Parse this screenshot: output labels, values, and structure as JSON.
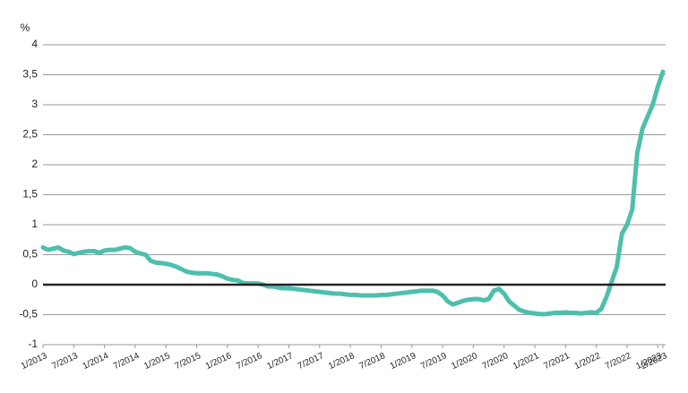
{
  "chart_data": {
    "type": "line",
    "y_label": "%",
    "color": "#4dbfad",
    "grid": true,
    "categories": [
      "1/2013",
      null,
      null,
      null,
      null,
      null,
      "7/2013",
      null,
      null,
      null,
      null,
      null,
      "1/2014",
      null,
      null,
      null,
      null,
      null,
      "7/2014",
      null,
      null,
      null,
      null,
      null,
      "1/2015",
      null,
      null,
      null,
      null,
      null,
      "7/2015",
      null,
      null,
      null,
      null,
      null,
      "1/2016",
      null,
      null,
      null,
      null,
      null,
      "7/2016",
      null,
      null,
      null,
      null,
      null,
      "1/2017",
      null,
      null,
      null,
      null,
      null,
      "7/2017",
      null,
      null,
      null,
      null,
      null,
      "1/2018",
      null,
      null,
      null,
      null,
      null,
      "7/2018",
      null,
      null,
      null,
      null,
      null,
      "1/2019",
      null,
      null,
      null,
      null,
      null,
      "7/2019",
      null,
      null,
      null,
      null,
      null,
      "1/2020",
      null,
      null,
      null,
      null,
      null,
      "7/2020",
      null,
      null,
      null,
      null,
      null,
      "1/2021",
      null,
      null,
      null,
      null,
      null,
      "7/2021",
      null,
      null,
      null,
      null,
      null,
      "1/2022",
      null,
      null,
      null,
      null,
      null,
      "7/2022",
      null,
      null,
      null,
      null,
      null,
      "1/2023",
      "2/2023"
    ],
    "values": [
      0.62,
      0.58,
      0.6,
      0.62,
      0.57,
      0.55,
      0.51,
      0.53,
      0.55,
      0.56,
      0.56,
      0.53,
      0.57,
      0.58,
      0.58,
      0.6,
      0.62,
      0.61,
      0.55,
      0.52,
      0.5,
      0.4,
      0.37,
      0.36,
      0.35,
      0.33,
      0.3,
      0.26,
      0.22,
      0.2,
      0.19,
      0.19,
      0.19,
      0.18,
      0.17,
      0.14,
      0.1,
      0.08,
      0.07,
      0.03,
      0.02,
      0.02,
      0.02,
      0,
      -0.03,
      -0.03,
      -0.05,
      -0.06,
      -0.06,
      -0.07,
      -0.08,
      -0.09,
      -0.1,
      -0.11,
      -0.12,
      -0.13,
      -0.14,
      -0.15,
      -0.15,
      -0.16,
      -0.17,
      -0.17,
      -0.18,
      -0.18,
      -0.18,
      -0.18,
      -0.17,
      -0.17,
      -0.16,
      -0.15,
      -0.14,
      -0.13,
      -0.12,
      -0.11,
      -0.1,
      -0.1,
      -0.1,
      -0.12,
      -0.18,
      -0.28,
      -0.33,
      -0.3,
      -0.27,
      -0.25,
      -0.24,
      -0.24,
      -0.26,
      -0.24,
      -0.1,
      -0.07,
      -0.15,
      -0.28,
      -0.35,
      -0.42,
      -0.45,
      -0.47,
      -0.48,
      -0.49,
      -0.49,
      -0.48,
      -0.47,
      -0.47,
      -0.46,
      -0.47,
      -0.47,
      -0.48,
      -0.47,
      -0.46,
      -0.47,
      -0.4,
      -0.2,
      0.05,
      0.3,
      0.85,
      1.0,
      1.25,
      2.2,
      2.6,
      2.8,
      3.0,
      3.3,
      3.55
    ],
    "ylim": [
      -1,
      4
    ],
    "yticks": [
      -1,
      {
        "value": -0.5,
        "label": "-0,5"
      },
      0,
      {
        "value": 0.5,
        "label": "0,5"
      },
      1,
      {
        "value": 1.5,
        "label": "1,5"
      },
      2,
      {
        "value": 2.5,
        "label": "2,5"
      },
      3,
      {
        "value": 3.5,
        "label": "3,5"
      },
      4
    ]
  }
}
